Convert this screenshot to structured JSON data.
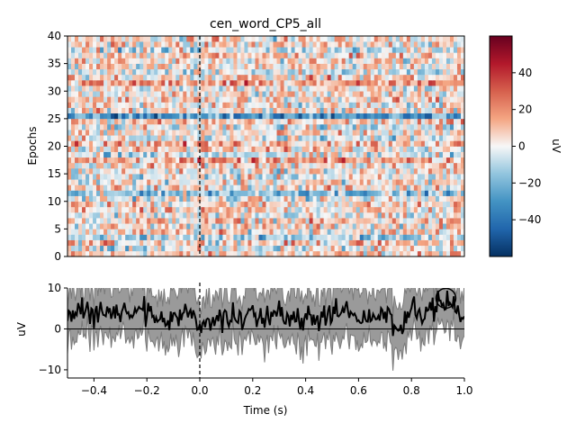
{
  "chart_data": [
    {
      "type": "heatmap",
      "title": "cen_word_CP5_all",
      "ylabel": "Epochs",
      "xlim": [
        -0.5,
        1.0
      ],
      "ylim": [
        0,
        40
      ],
      "yticks": [
        0,
        5,
        10,
        15,
        20,
        25,
        30,
        35,
        40
      ],
      "event_marker_x": 0.0,
      "n_epochs": 40,
      "colormap": "RdBu_r",
      "colorbar": {
        "label": "uV",
        "range": [
          -60,
          60
        ],
        "ticks": [
          -40,
          -20,
          0,
          20,
          40
        ]
      },
      "epoch_offsets_uV": [
        6,
        -3,
        8,
        -10,
        5,
        3,
        7,
        -4,
        5,
        6,
        -2,
        -15,
        4,
        3,
        -3,
        2,
        6,
        15,
        -5,
        7,
        14,
        -3,
        2,
        -4,
        6,
        -28,
        4,
        2,
        5,
        3,
        3,
        16,
        7,
        -4,
        5,
        3,
        8,
        -6,
        4,
        3
      ],
      "note_values": "per-epoch baseline estimated from the row colors; each cell also has noise"
    },
    {
      "type": "line",
      "xlabel": "Time (s)",
      "ylabel": "uV",
      "xlim": [
        -0.5,
        1.0
      ],
      "ylim": [
        -12,
        10
      ],
      "xticks": [
        -0.4,
        -0.2,
        0.0,
        0.2,
        0.4,
        0.6,
        0.8,
        1.0
      ],
      "yticks": [
        -10,
        0,
        10
      ],
      "event_marker_x": 0.0,
      "peak_marker": {
        "x": 0.93,
        "y": 7.5
      },
      "series": [
        {
          "x": [
            -0.5,
            -0.45,
            -0.4,
            -0.35,
            -0.3,
            -0.25,
            -0.2,
            -0.15,
            -0.1,
            -0.05,
            0.0,
            0.05,
            0.1,
            0.15,
            0.2,
            0.25,
            0.3,
            0.35,
            0.4,
            0.45,
            0.5,
            0.55,
            0.6,
            0.65,
            0.7,
            0.75,
            0.8,
            0.85,
            0.9,
            0.95,
            1.0
          ],
          "y": [
            3.5,
            4.5,
            2.5,
            5.0,
            4.0,
            3.0,
            4.0,
            1.5,
            2.0,
            4.5,
            0.5,
            2.0,
            3.0,
            2.0,
            2.5,
            3.5,
            3.0,
            1.5,
            3.5,
            2.5,
            3.0,
            4.0,
            2.5,
            4.0,
            3.5,
            1.0,
            4.5,
            3.5,
            5.5,
            6.5,
            3.5
          ],
          "band_lower": [
            -2.5,
            -1.5,
            -3.5,
            -1.0,
            -2.0,
            -3.0,
            -2.0,
            -4.5,
            -4.0,
            -1.5,
            -5.5,
            -4.0,
            -3.0,
            -4.0,
            -3.5,
            -2.5,
            -3.0,
            -4.5,
            -2.5,
            -3.5,
            -3.0,
            -2.0,
            -3.5,
            -2.0,
            -2.5,
            -5.0,
            -1.5,
            -2.5,
            -0.5,
            0.5,
            -2.5
          ],
          "band_upper": [
            9.5,
            10.5,
            8.5,
            11.0,
            10.0,
            9.0,
            10.0,
            7.5,
            8.0,
            10.5,
            6.5,
            8.0,
            9.0,
            8.0,
            8.5,
            9.5,
            9.0,
            7.5,
            9.5,
            8.5,
            9.0,
            10.0,
            8.5,
            10.0,
            9.5,
            7.0,
            10.5,
            9.5,
            11.5,
            12.5,
            9.5
          ]
        }
      ]
    }
  ]
}
